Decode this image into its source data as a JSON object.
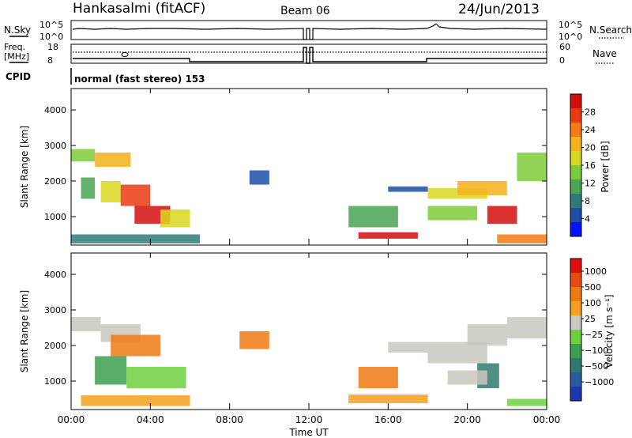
{
  "header": {
    "station": "Hankasalmi (fitACF)",
    "beam": "Beam 06",
    "date": "24/Jun/2013"
  },
  "top_panels": {
    "nsky_label": "N.Sky",
    "nsky_ticks": [
      "10^5",
      "10^0"
    ],
    "nsearch_label": "N.Search",
    "nsearch_ticks": [
      "10^5",
      "10^0"
    ],
    "freq_label_1": "Freq.",
    "freq_label_2": "[MHz]",
    "freq_ticks": [
      "18",
      "8"
    ],
    "nave_label": "Nave",
    "nave_ticks": [
      "60",
      "0"
    ],
    "cpid_label": "CPID",
    "cpid_text": "normal (fast stereo) 153"
  },
  "chart_data": [
    {
      "type": "heatmap",
      "title": "",
      "xlabel": "Time UT",
      "ylabel": "Slant Range [km]",
      "xlim": [
        0,
        24
      ],
      "ylim": [
        200,
        4600
      ],
      "x_ticks": [
        "00:00",
        "04:00",
        "08:00",
        "12:00",
        "16:00",
        "20:00",
        "00:00"
      ],
      "y_ticks": [
        "1000",
        "2000",
        "3000",
        "4000"
      ],
      "colorbar": {
        "label": "Power [dB]",
        "ticks": [
          "4",
          "8",
          "12",
          "16",
          "20",
          "24",
          "28"
        ],
        "colors": [
          "#0014ff",
          "#1f4ea8",
          "#2f7a78",
          "#4aa455",
          "#7ecb3a",
          "#d8d820",
          "#f5b21a",
          "#f57a14",
          "#ea3a10",
          "#d40e0e"
        ]
      },
      "regions": [
        {
          "t0": 0.0,
          "t1": 1.2,
          "r0": 2550,
          "r1": 2900,
          "level": 4
        },
        {
          "t0": 1.2,
          "t1": 3.0,
          "r0": 2400,
          "r1": 2800,
          "level": 6
        },
        {
          "t0": 1.5,
          "t1": 2.5,
          "r0": 1400,
          "r1": 2000,
          "level": 5
        },
        {
          "t0": 2.5,
          "t1": 4.0,
          "r0": 1300,
          "r1": 1900,
          "level": 8
        },
        {
          "t0": 3.2,
          "t1": 5.0,
          "r0": 800,
          "r1": 1300,
          "level": 9
        },
        {
          "t0": 4.5,
          "t1": 6.0,
          "r0": 700,
          "r1": 1200,
          "level": 5
        },
        {
          "t0": 0.5,
          "t1": 1.2,
          "r0": 1500,
          "r1": 2100,
          "level": 3
        },
        {
          "t0": 0.0,
          "t1": 6.5,
          "r0": 250,
          "r1": 500,
          "level": 2
        },
        {
          "t0": 14.5,
          "t1": 17.5,
          "r0": 380,
          "r1": 560,
          "level": 9
        },
        {
          "t0": 14.0,
          "t1": 16.5,
          "r0": 700,
          "r1": 1300,
          "level": 3
        },
        {
          "t0": 16.0,
          "t1": 18.0,
          "r0": 1700,
          "r1": 1850,
          "level": 1
        },
        {
          "t0": 18.0,
          "t1": 21.0,
          "r0": 1500,
          "r1": 1800,
          "level": 5
        },
        {
          "t0": 19.5,
          "t1": 22.0,
          "r0": 1600,
          "r1": 2000,
          "level": 6
        },
        {
          "t0": 21.0,
          "t1": 22.5,
          "r0": 800,
          "r1": 1300,
          "level": 9
        },
        {
          "t0": 22.5,
          "t1": 24.0,
          "r0": 2000,
          "r1": 2800,
          "level": 4
        },
        {
          "t0": 21.5,
          "t1": 24.0,
          "r0": 250,
          "r1": 500,
          "level": 7
        },
        {
          "t0": 9.0,
          "t1": 10.0,
          "r0": 1900,
          "r1": 2300,
          "level": 1
        },
        {
          "t0": 18.0,
          "t1": 20.5,
          "r0": 900,
          "r1": 1300,
          "level": 4
        }
      ]
    },
    {
      "type": "heatmap",
      "title": "",
      "xlabel": "Time UT",
      "ylabel": "Slant Range [km]",
      "xlim": [
        0,
        24
      ],
      "ylim": [
        200,
        4600
      ],
      "x_ticks": [
        "00:00",
        "04:00",
        "08:00",
        "12:00",
        "16:00",
        "20:00",
        "00:00"
      ],
      "y_ticks": [
        "1000",
        "2000",
        "3000",
        "4000"
      ],
      "colorbar": {
        "label": "Velocity [m s⁻¹]",
        "ticks": [
          "1000",
          "500",
          "100",
          "25",
          "−25",
          "−100",
          "−500",
          "−1000"
        ],
        "colors": [
          "#1e36b4",
          "#2a5aa0",
          "#2f7a6e",
          "#3da050",
          "#6cd040",
          "#c8c8c0",
          "#f5a020",
          "#f07a12",
          "#e84a10",
          "#e01010"
        ]
      },
      "regions": [
        {
          "t0": 0.0,
          "t1": 1.5,
          "r0": 2400,
          "r1": 2800,
          "level": 5
        },
        {
          "t0": 1.5,
          "t1": 3.5,
          "r0": 2100,
          "r1": 2600,
          "level": 5
        },
        {
          "t0": 2.0,
          "t1": 4.5,
          "r0": 1700,
          "r1": 2300,
          "level": 7
        },
        {
          "t0": 1.2,
          "t1": 2.8,
          "r0": 900,
          "r1": 1700,
          "level": 3
        },
        {
          "t0": 2.8,
          "t1": 5.8,
          "r0": 800,
          "r1": 1400,
          "level": 4
        },
        {
          "t0": 0.5,
          "t1": 6.0,
          "r0": 300,
          "r1": 600,
          "level": 6
        },
        {
          "t0": 14.0,
          "t1": 18.0,
          "r0": 380,
          "r1": 620,
          "level": 6
        },
        {
          "t0": 14.5,
          "t1": 16.5,
          "r0": 800,
          "r1": 1400,
          "level": 7
        },
        {
          "t0": 16.0,
          "t1": 18.0,
          "r0": 1800,
          "r1": 2100,
          "level": 5
        },
        {
          "t0": 18.0,
          "t1": 21.0,
          "r0": 1500,
          "r1": 2100,
          "level": 5
        },
        {
          "t0": 20.0,
          "t1": 22.0,
          "r0": 2000,
          "r1": 2600,
          "level": 5
        },
        {
          "t0": 22.0,
          "t1": 24.0,
          "r0": 2200,
          "r1": 2800,
          "level": 5
        },
        {
          "t0": 20.5,
          "t1": 21.6,
          "r0": 800,
          "r1": 1500,
          "level": 2
        },
        {
          "t0": 22.0,
          "t1": 24.0,
          "r0": 300,
          "r1": 500,
          "level": 4
        },
        {
          "t0": 8.5,
          "t1": 10.0,
          "r0": 1900,
          "r1": 2400,
          "level": 7
        },
        {
          "t0": 19.0,
          "t1": 21.0,
          "r0": 900,
          "r1": 1300,
          "level": 5
        }
      ]
    }
  ]
}
